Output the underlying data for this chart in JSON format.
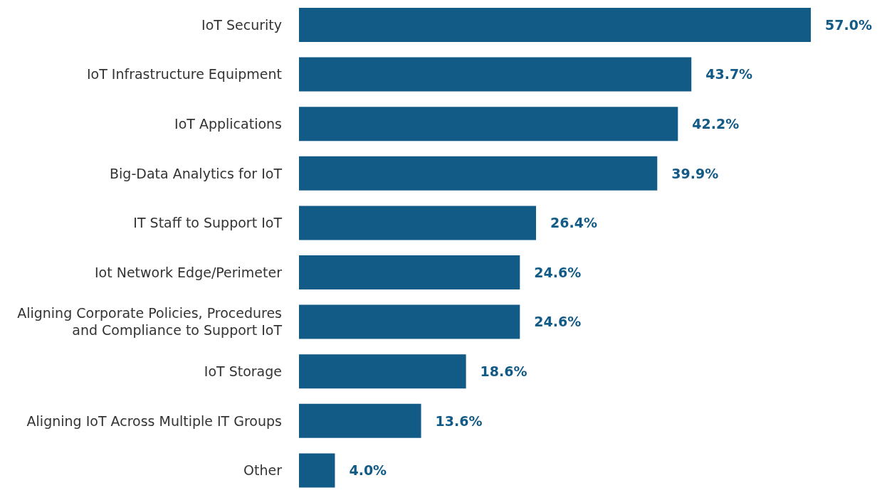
{
  "chart_data": {
    "type": "bar",
    "orientation": "horizontal",
    "categories": [
      "IoT Security",
      "IoT Infrastructure Equipment",
      "IoT Applications",
      "Big-Data Analytics for IoT",
      "IT Staff to Support IoT",
      "Iot Network Edge/Perimeter",
      "Aligning Corporate Policies, Procedures and Compliance to Support IoT",
      "IoT Storage",
      "Aligning IoT Across Multiple IT Groups",
      "Other"
    ],
    "values": [
      57.0,
      43.7,
      42.2,
      39.9,
      26.4,
      24.6,
      24.6,
      18.6,
      13.6,
      4.0
    ],
    "value_labels": [
      "57.0%",
      "43.7%",
      "42.2%",
      "39.9%",
      "26.4%",
      "24.6%",
      "24.6%",
      "18.6%",
      "13.6%",
      "4.0%"
    ],
    "color": "#135b87"
  }
}
